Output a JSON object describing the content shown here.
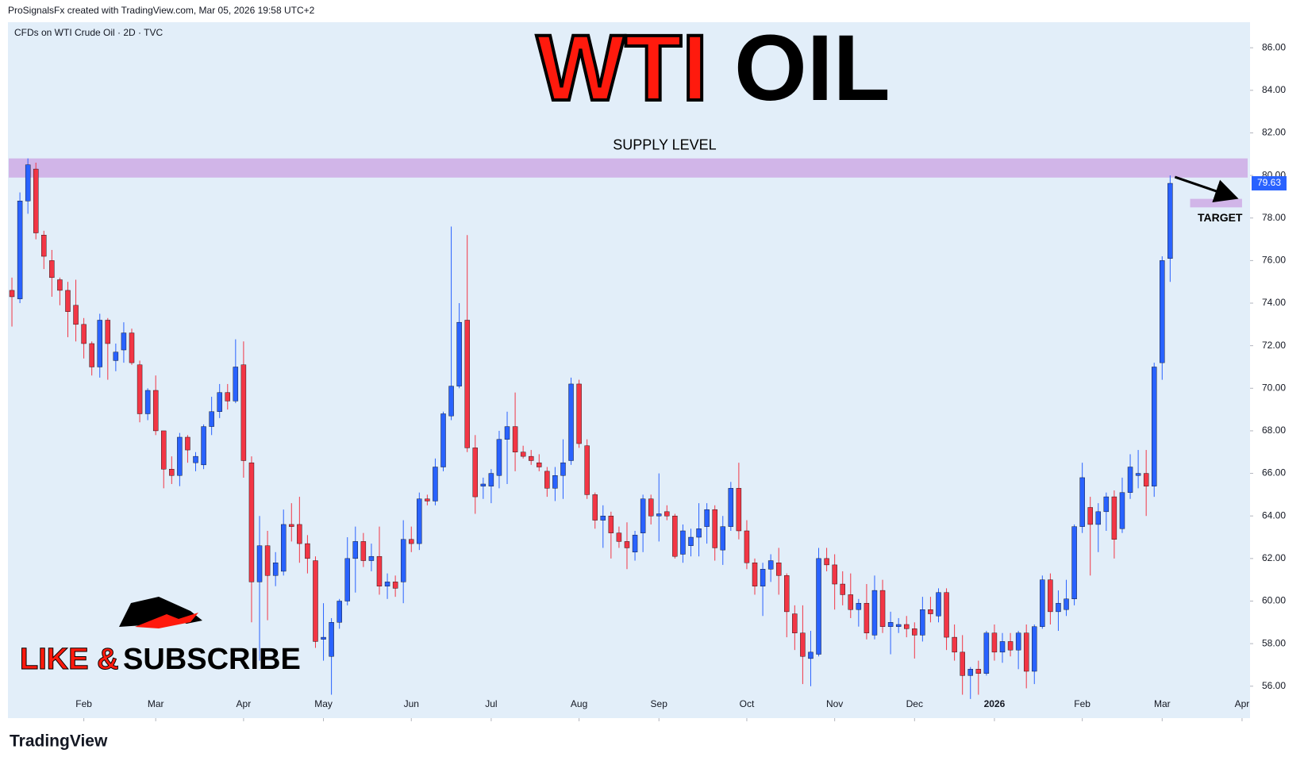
{
  "header": {
    "credit": "ProSignalsFx created with TradingView.com, Mar 05, 2026 19:58 UTC+2",
    "logo": "TradingView"
  },
  "chart_data": {
    "type": "candlestick",
    "symbol": "CFDs on WTI Crude Oil · 2D · TVC",
    "title_parts": [
      "WTI",
      "OIL"
    ],
    "promo": [
      "LIKE &",
      "SUBSCRIBE"
    ],
    "up_color": "#2962ff",
    "down_color": "#f23645",
    "zones": [
      {
        "label": "SUPPLY LEVEL",
        "range": [
          79.9,
          80.8
        ],
        "color": "#cfaee6"
      },
      {
        "label": "TARGET",
        "range": [
          78.5,
          78.9
        ],
        "color": "#cfaee6"
      }
    ],
    "last_price": 79.63,
    "xlim": [
      -0.5,
      155
    ],
    "xticks": [
      {
        "value": 9,
        "label": "Feb"
      },
      {
        "value": 18,
        "label": "Mar"
      },
      {
        "value": 29,
        "label": "Apr"
      },
      {
        "value": 39,
        "label": "May"
      },
      {
        "value": 50,
        "label": "Jun"
      },
      {
        "value": 60,
        "label": "Jul"
      },
      {
        "value": 71,
        "label": "Aug"
      },
      {
        "value": 81,
        "label": "Sep"
      },
      {
        "value": 92,
        "label": "Oct"
      },
      {
        "value": 103,
        "label": "Nov"
      },
      {
        "value": 113,
        "label": "Dec"
      },
      {
        "value": 123,
        "label": "2026"
      },
      {
        "value": 134,
        "label": "Feb"
      },
      {
        "value": 144,
        "label": "Mar"
      },
      {
        "value": 154,
        "label": "Apr"
      }
    ],
    "ylim": [
      54.5,
      87.2
    ],
    "yticks": [
      {
        "value": 56,
        "label": "56.00"
      },
      {
        "value": 58,
        "label": "58.00"
      },
      {
        "value": 60,
        "label": "60.00"
      },
      {
        "value": 62,
        "label": "62.00"
      },
      {
        "value": 64,
        "label": "64.00"
      },
      {
        "value": 66,
        "label": "66.00"
      },
      {
        "value": 68,
        "label": "68.00"
      },
      {
        "value": 70,
        "label": "70.00"
      },
      {
        "value": 72,
        "label": "72.00"
      },
      {
        "value": 74,
        "label": "74.00"
      },
      {
        "value": 76,
        "label": "76.00"
      },
      {
        "value": 78,
        "label": "78.00"
      },
      {
        "value": 80,
        "label": "80.00"
      },
      {
        "value": 82,
        "label": "82.00"
      },
      {
        "value": 84,
        "label": "84.00"
      },
      {
        "value": 86,
        "label": "86.00"
      }
    ],
    "grid": false,
    "candles": [
      [
        74.6,
        75.2,
        72.9,
        74.3
      ],
      [
        74.2,
        79.2,
        74.0,
        78.8
      ],
      [
        78.8,
        80.8,
        78.2,
        80.5
      ],
      [
        80.3,
        80.6,
        77.0,
        77.3
      ],
      [
        77.2,
        77.4,
        75.6,
        76.2
      ],
      [
        76.0,
        76.5,
        74.3,
        75.2
      ],
      [
        75.1,
        75.2,
        73.9,
        74.6
      ],
      [
        74.6,
        75.0,
        72.4,
        73.6
      ],
      [
        73.9,
        75.1,
        72.2,
        73.0
      ],
      [
        73.0,
        73.3,
        71.4,
        72.1
      ],
      [
        72.1,
        72.2,
        70.6,
        71.0
      ],
      [
        71.0,
        73.5,
        70.5,
        73.2
      ],
      [
        73.2,
        73.3,
        70.4,
        72.1
      ],
      [
        71.3,
        72.1,
        70.8,
        71.7
      ],
      [
        71.8,
        73.1,
        71.2,
        72.6
      ],
      [
        72.6,
        72.8,
        71.1,
        71.2
      ],
      [
        71.1,
        71.3,
        68.4,
        68.8
      ],
      [
        68.8,
        70.0,
        68.5,
        69.9
      ],
      [
        69.9,
        70.6,
        67.8,
        68.0
      ],
      [
        68.0,
        68.0,
        65.3,
        66.2
      ],
      [
        66.2,
        66.8,
        65.5,
        65.9
      ],
      [
        65.9,
        67.9,
        65.4,
        67.7
      ],
      [
        67.7,
        67.8,
        66.5,
        67.1
      ],
      [
        66.5,
        67.0,
        66.1,
        66.8
      ],
      [
        66.4,
        68.3,
        66.2,
        68.2
      ],
      [
        68.2,
        69.6,
        67.8,
        68.9
      ],
      [
        68.9,
        70.2,
        68.6,
        69.8
      ],
      [
        69.8,
        70.2,
        69.0,
        69.4
      ],
      [
        69.4,
        72.3,
        69.3,
        71.0
      ],
      [
        71.1,
        72.2,
        65.8,
        66.6
      ],
      [
        66.5,
        66.8,
        59.0,
        60.9
      ],
      [
        60.9,
        64.0,
        57.2,
        62.6
      ],
      [
        62.6,
        63.3,
        59.1,
        61.2
      ],
      [
        61.2,
        62.3,
        60.7,
        61.8
      ],
      [
        61.4,
        64.3,
        61.2,
        63.6
      ],
      [
        63.6,
        64.6,
        62.8,
        63.5
      ],
      [
        63.6,
        64.9,
        61.8,
        62.7
      ],
      [
        62.7,
        63.1,
        61.3,
        62.0
      ],
      [
        61.9,
        62.1,
        57.8,
        58.1
      ],
      [
        58.2,
        59.9,
        57.2,
        58.3
      ],
      [
        57.4,
        59.2,
        55.6,
        59.0
      ],
      [
        59.0,
        60.1,
        58.7,
        60.0
      ],
      [
        60.0,
        63.0,
        59.8,
        62.0
      ],
      [
        62.0,
        63.5,
        60.4,
        62.8
      ],
      [
        62.8,
        63.2,
        61.6,
        61.9
      ],
      [
        61.9,
        62.7,
        61.4,
        62.1
      ],
      [
        62.1,
        63.5,
        60.3,
        60.7
      ],
      [
        60.7,
        61.3,
        60.1,
        60.9
      ],
      [
        60.9,
        61.2,
        60.2,
        60.6
      ],
      [
        60.9,
        63.8,
        59.9,
        62.9
      ],
      [
        62.9,
        63.5,
        62.3,
        62.7
      ],
      [
        62.7,
        65.1,
        62.4,
        64.8
      ],
      [
        64.8,
        65.0,
        64.5,
        64.7
      ],
      [
        64.7,
        66.7,
        64.5,
        66.3
      ],
      [
        66.3,
        68.9,
        66.1,
        68.8
      ],
      [
        68.7,
        77.6,
        68.5,
        70.1
      ],
      [
        70.1,
        74.0,
        70.0,
        73.1
      ],
      [
        73.2,
        77.2,
        67.0,
        67.2
      ],
      [
        67.2,
        67.8,
        64.1,
        64.9
      ],
      [
        65.4,
        65.8,
        64.8,
        65.5
      ],
      [
        65.4,
        66.2,
        64.6,
        66.0
      ],
      [
        65.9,
        68.0,
        65.3,
        67.6
      ],
      [
        67.6,
        68.9,
        65.5,
        68.2
      ],
      [
        68.2,
        69.8,
        66.1,
        67.0
      ],
      [
        67.0,
        67.3,
        66.7,
        66.8
      ],
      [
        66.8,
        67.1,
        66.4,
        66.6
      ],
      [
        66.5,
        66.9,
        66.1,
        66.3
      ],
      [
        66.1,
        66.3,
        64.9,
        65.3
      ],
      [
        65.3,
        66.3,
        64.7,
        65.9
      ],
      [
        65.9,
        67.6,
        64.8,
        66.5
      ],
      [
        66.6,
        70.5,
        66.4,
        70.2
      ],
      [
        70.2,
        70.4,
        67.2,
        67.4
      ],
      [
        67.3,
        67.6,
        64.8,
        65.0
      ],
      [
        65.0,
        65.1,
        63.4,
        63.8
      ],
      [
        63.8,
        64.5,
        62.5,
        64.0
      ],
      [
        64.0,
        64.2,
        62.0,
        63.2
      ],
      [
        63.2,
        63.5,
        62.5,
        62.8
      ],
      [
        62.8,
        63.7,
        61.5,
        62.5
      ],
      [
        62.3,
        63.3,
        61.9,
        63.1
      ],
      [
        63.2,
        65.0,
        62.3,
        64.8
      ],
      [
        64.8,
        65.0,
        63.6,
        64.0
      ],
      [
        64.0,
        66.0,
        62.8,
        64.1
      ],
      [
        64.2,
        64.5,
        63.8,
        64.0
      ],
      [
        64.0,
        64.1,
        62.0,
        62.1
      ],
      [
        62.2,
        63.6,
        61.8,
        63.3
      ],
      [
        62.6,
        63.4,
        62.1,
        63.0
      ],
      [
        63.0,
        64.6,
        62.1,
        63.4
      ],
      [
        63.5,
        64.6,
        62.7,
        64.3
      ],
      [
        64.3,
        64.5,
        61.9,
        62.5
      ],
      [
        62.4,
        64.0,
        61.7,
        63.5
      ],
      [
        63.5,
        65.6,
        63.3,
        65.3
      ],
      [
        65.3,
        66.5,
        62.9,
        63.3
      ],
      [
        63.3,
        63.8,
        61.5,
        61.8
      ],
      [
        61.8,
        62.0,
        60.3,
        60.7
      ],
      [
        60.7,
        61.8,
        59.3,
        61.5
      ],
      [
        61.5,
        62.2,
        60.9,
        61.9
      ],
      [
        61.8,
        62.5,
        60.3,
        61.2
      ],
      [
        61.2,
        61.3,
        58.3,
        59.5
      ],
      [
        59.4,
        59.8,
        57.7,
        58.5
      ],
      [
        58.5,
        59.8,
        56.1,
        57.4
      ],
      [
        57.3,
        58.6,
        56.0,
        57.6
      ],
      [
        57.5,
        62.5,
        57.4,
        62.0
      ],
      [
        62.0,
        62.5,
        61.4,
        61.7
      ],
      [
        61.7,
        62.2,
        59.6,
        60.8
      ],
      [
        60.8,
        61.4,
        59.8,
        60.3
      ],
      [
        60.3,
        61.3,
        59.2,
        59.6
      ],
      [
        59.6,
        60.1,
        58.8,
        59.9
      ],
      [
        59.9,
        60.8,
        58.2,
        58.5
      ],
      [
        58.4,
        61.2,
        58.2,
        60.5
      ],
      [
        60.5,
        61.0,
        58.5,
        58.8
      ],
      [
        58.8,
        59.5,
        57.5,
        59.0
      ],
      [
        58.8,
        59.2,
        58.5,
        58.9
      ],
      [
        58.9,
        59.3,
        58.3,
        58.7
      ],
      [
        58.7,
        59.0,
        57.3,
        58.4
      ],
      [
        58.4,
        60.2,
        58.1,
        59.6
      ],
      [
        59.6,
        60.2,
        59.0,
        59.4
      ],
      [
        59.3,
        60.6,
        59.0,
        60.4
      ],
      [
        60.4,
        60.6,
        57.7,
        58.3
      ],
      [
        58.3,
        58.9,
        57.2,
        57.6
      ],
      [
        57.6,
        58.4,
        55.6,
        56.5
      ],
      [
        56.5,
        56.9,
        55.4,
        56.8
      ],
      [
        56.8,
        57.2,
        55.6,
        56.6
      ],
      [
        56.6,
        58.6,
        56.5,
        58.5
      ],
      [
        58.5,
        58.9,
        57.2,
        57.6
      ],
      [
        57.6,
        58.5,
        57.1,
        58.1
      ],
      [
        58.1,
        58.5,
        57.4,
        57.7
      ],
      [
        57.7,
        58.6,
        56.8,
        58.5
      ],
      [
        58.5,
        58.9,
        55.9,
        56.7
      ],
      [
        56.7,
        58.9,
        56.1,
        58.8
      ],
      [
        58.8,
        61.2,
        58.7,
        61.0
      ],
      [
        61.0,
        61.3,
        58.9,
        59.5
      ],
      [
        59.5,
        60.5,
        58.6,
        59.9
      ],
      [
        59.6,
        61.0,
        59.3,
        60.1
      ],
      [
        60.1,
        63.6,
        59.8,
        63.5
      ],
      [
        63.5,
        66.5,
        63.2,
        65.8
      ],
      [
        64.4,
        64.9,
        61.2,
        63.6
      ],
      [
        63.6,
        64.6,
        62.3,
        64.2
      ],
      [
        64.2,
        65.1,
        63.3,
        64.9
      ],
      [
        64.9,
        65.2,
        62.0,
        62.9
      ],
      [
        63.4,
        65.8,
        63.2,
        65.1
      ],
      [
        65.1,
        66.9,
        64.8,
        66.3
      ],
      [
        65.9,
        67.1,
        65.3,
        66.0
      ],
      [
        66.0,
        67.1,
        64.0,
        65.4
      ],
      [
        65.4,
        71.2,
        64.9,
        71.0
      ],
      [
        71.2,
        76.2,
        70.4,
        76.0
      ],
      [
        76.1,
        80.0,
        75.0,
        79.63
      ]
    ]
  }
}
